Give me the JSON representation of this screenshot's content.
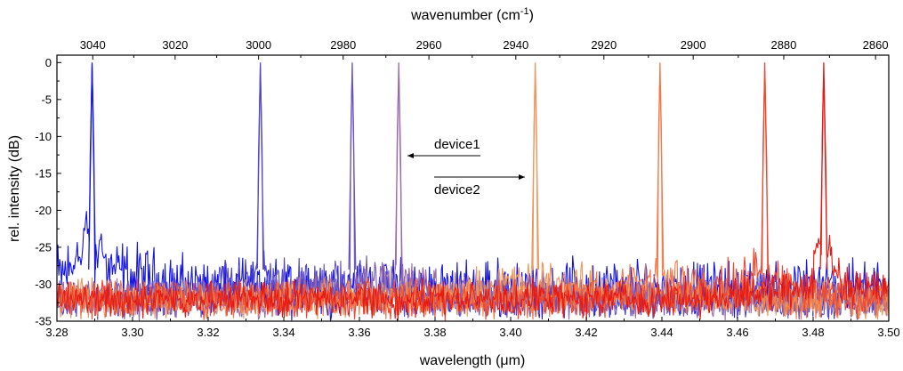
{
  "chart_data": {
    "type": "line",
    "title": "",
    "xlabel": "wavelength (μm)",
    "ylabel": "rel. intensity (dB)",
    "top_xlabel_base": "wavenumber (cm",
    "top_xlabel_sup": "-1",
    "top_xlabel_end": ")",
    "xlim": [
      3.28,
      3.5
    ],
    "ylim": [
      -35,
      1
    ],
    "x_ticks": [
      "3.28",
      "3.30",
      "3.32",
      "3.34",
      "3.36",
      "3.38",
      "3.40",
      "3.42",
      "3.44",
      "3.46",
      "3.48",
      "3.50"
    ],
    "y_ticks": [
      "0",
      "-5",
      "-10",
      "-15",
      "-20",
      "-25",
      "-30",
      "-35"
    ],
    "top_ticks": [
      "3040",
      "3020",
      "3000",
      "2980",
      "2960",
      "2940",
      "2920",
      "2900",
      "2880",
      "2860"
    ],
    "grid": false,
    "annotations": [
      {
        "text": "device1",
        "arrow": "left"
      },
      {
        "text": "device2",
        "arrow": "right"
      }
    ],
    "series": [
      {
        "peak_x": 3.2893,
        "peak_y": 0,
        "color": "#1414e6",
        "noise_floor": -28,
        "sidebands": [
          {
            "dx": -0.004,
            "y": -24
          },
          {
            "dx": 0.0025,
            "y": -22
          },
          {
            "dx": -0.0015,
            "y": -20
          }
        ]
      },
      {
        "peak_x": 3.3338,
        "peak_y": 0,
        "color": "#5046d0",
        "noise_floor": -31,
        "sidebands": [
          {
            "dx": -0.001,
            "y": -26
          },
          {
            "dx": 0.001,
            "y": -25
          }
        ]
      },
      {
        "peak_x": 3.3581,
        "peak_y": 0,
        "color": "#6a55c0",
        "noise_floor": -31,
        "sidebands": [
          {
            "dx": -0.001,
            "y": -28
          }
        ]
      },
      {
        "peak_x": 3.3704,
        "peak_y": 0,
        "color": "#9a6aa8",
        "noise_floor": -31,
        "sidebands": [
          {
            "dx": -0.001,
            "y": -28
          },
          {
            "dx": 0.001,
            "y": -29
          }
        ]
      },
      {
        "peak_x": 3.4065,
        "peak_y": 0,
        "color": "#f0955a",
        "noise_floor": -31,
        "sidebands": [
          {
            "dx": -0.001,
            "y": -29
          },
          {
            "dx": 0.0012,
            "y": -30
          }
        ]
      },
      {
        "peak_x": 3.4395,
        "peak_y": 0,
        "color": "#f27a4a",
        "noise_floor": -31,
        "sidebands": [
          {
            "dx": -0.001,
            "y": -26
          },
          {
            "dx": 0.001,
            "y": -27
          }
        ]
      },
      {
        "peak_x": 3.4672,
        "peak_y": 0,
        "color": "#ee4a32",
        "noise_floor": -31,
        "sidebands": [
          {
            "dx": -0.001,
            "y": -26
          },
          {
            "dx": 0.0012,
            "y": -27
          }
        ]
      },
      {
        "peak_x": 3.4828,
        "peak_y": 0,
        "color": "#e61a14",
        "noise_floor": -31,
        "sidebands": [
          {
            "dx": -0.0015,
            "y": -22
          },
          {
            "dx": 0.0015,
            "y": -23
          },
          {
            "dx": 0.003,
            "y": -27
          }
        ]
      }
    ]
  }
}
